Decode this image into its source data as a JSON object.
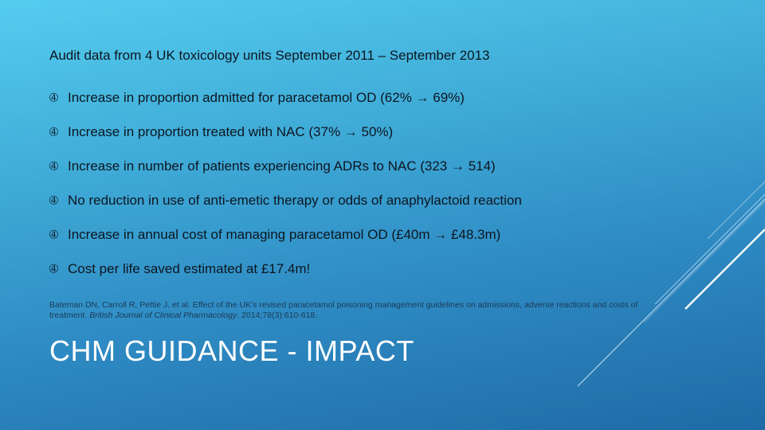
{
  "slide": {
    "intro": "Audit data from 4 UK toxicology units September 2011 – September 2013",
    "bullet_icon": "circled-4-bullet-icon",
    "bullet_glyph": "➃",
    "bullets": [
      "Increase in proportion admitted for paracetamol OD (62% → 69%)",
      "Increase in proportion treated with NAC (37% → 50%)",
      "Increase in number of patients experiencing ADRs to NAC (323 → 514)",
      "No reduction in use of anti-emetic therapy or odds of anaphylactoid reaction",
      "Increase in annual cost of managing paracetamol OD (£40m → £48.3m)",
      "Cost per life saved estimated at £17.4m!"
    ],
    "citation": {
      "before": "Bateman DN, Carroll R, Pettie J, et al. Effect of the UK's revised paracetamol poisoning management guidelines on admissions, adverse reactions and costs of treatment. ",
      "journal": "British Journal of Clinical Pharmacology",
      "after": ". 2014;78(3):610-618."
    },
    "title": "CHM GUIDANCE - IMPACT"
  },
  "colors": {
    "background_top": "#55cdef",
    "background_bottom": "#1f6aa6",
    "body_text": "#0d1620",
    "title_text": "#ffffff",
    "decor_lines": "#ffffff"
  }
}
